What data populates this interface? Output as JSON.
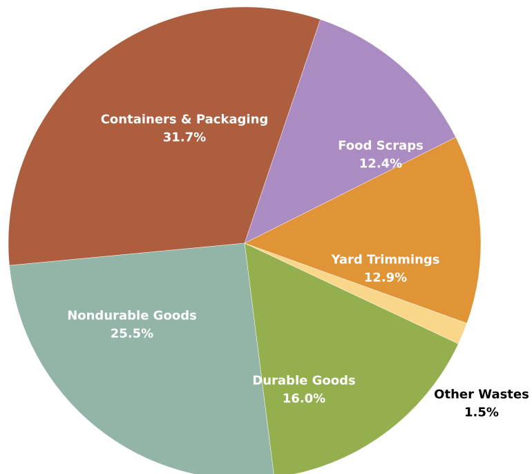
{
  "chart_data": {
    "type": "pie",
    "title": "",
    "unit": "%",
    "slices": [
      {
        "label": "Containers & Packaging",
        "value": 31.7,
        "value_label": "31.7%",
        "color": "#ad5e3e",
        "label_color": "#ffffff"
      },
      {
        "label": "Food Scraps",
        "value": 12.4,
        "value_label": "12.4%",
        "color": "#aa8bc2",
        "label_color": "#ffffff"
      },
      {
        "label": "Yard Trimmings",
        "value": 12.9,
        "value_label": "12.9%",
        "color": "#e09436",
        "label_color": "#ffffff"
      },
      {
        "label": "Other Wastes",
        "value": 1.5,
        "value_label": "1.5%",
        "color": "#fad68a",
        "label_color": "#000000"
      },
      {
        "label": "Durable Goods",
        "value": 16.0,
        "value_label": "16.0%",
        "color": "#94b04e",
        "label_color": "#ffffff"
      },
      {
        "label": "Nondurable Goods",
        "value": 25.5,
        "value_label": "25.5%",
        "color": "#92b5a8",
        "label_color": "#ffffff"
      }
    ]
  }
}
